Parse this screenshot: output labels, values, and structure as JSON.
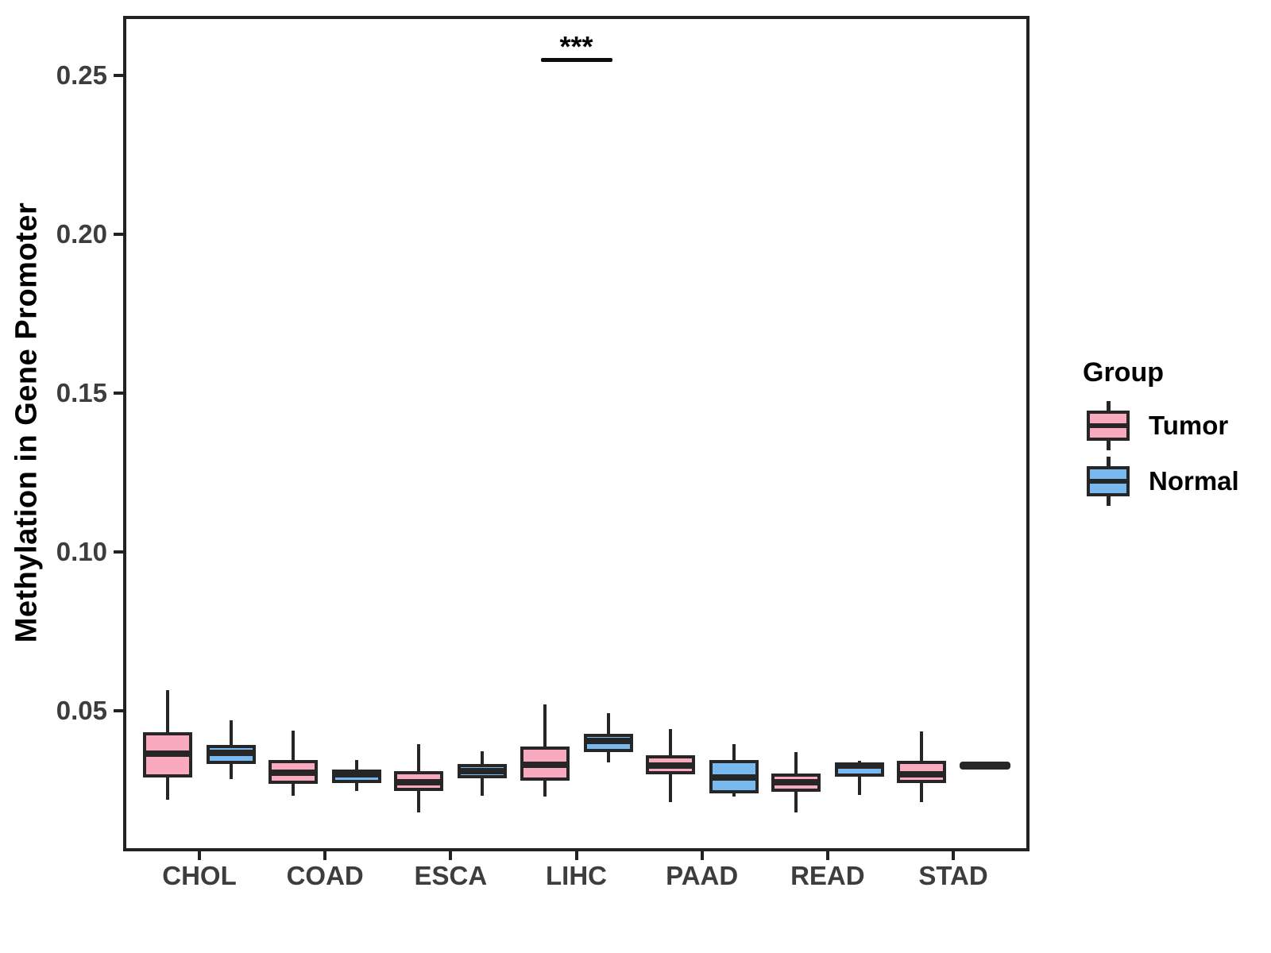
{
  "style": {
    "background": "#ffffff",
    "box_stroke": "#262626",
    "axis_color": "#222222",
    "tick_label_color": "#3d3d3d",
    "title_color": "#000000",
    "tumor_fill": "#FAAABE",
    "normal_fill": "#78BAF0"
  },
  "chart_data": {
    "type": "boxplot",
    "title": "",
    "xlabel": "",
    "ylabel": "Methylation in Gene Promoter",
    "grid": false,
    "legend_position": "right",
    "legend": {
      "title": "Group"
    },
    "categories": [
      "CHOL",
      "COAD",
      "ESCA",
      "LIHC",
      "PAAD",
      "READ",
      "STAD"
    ],
    "y_ticks": [
      0.05,
      0.1,
      0.15,
      0.2,
      0.25
    ],
    "ylim": [
      0.006,
      0.268
    ],
    "groups": [
      {
        "name": "Tumor",
        "fill": "#FAAABE"
      },
      {
        "name": "Normal",
        "fill": "#78BAF0"
      }
    ],
    "significance": {
      "category": "LIHC",
      "label": "***",
      "y": 0.255
    },
    "series": [
      {
        "category": "CHOL",
        "group": "Tumor",
        "min": 0.022,
        "q1": 0.029,
        "median": 0.0365,
        "q3": 0.0433,
        "max": 0.0565
      },
      {
        "category": "CHOL",
        "group": "Normal",
        "min": 0.0285,
        "q1": 0.0333,
        "median": 0.0368,
        "q3": 0.0393,
        "max": 0.047
      },
      {
        "category": "COAD",
        "group": "Tumor",
        "min": 0.0233,
        "q1": 0.027,
        "median": 0.0305,
        "q3": 0.0345,
        "max": 0.0438
      },
      {
        "category": "COAD",
        "group": "Normal",
        "min": 0.0248,
        "q1": 0.0272,
        "median": 0.03,
        "q3": 0.0315,
        "max": 0.0345
      },
      {
        "category": "ESCA",
        "group": "Tumor",
        "min": 0.018,
        "q1": 0.0248,
        "median": 0.0275,
        "q3": 0.031,
        "max": 0.0395
      },
      {
        "category": "ESCA",
        "group": "Normal",
        "min": 0.0233,
        "q1": 0.0288,
        "median": 0.031,
        "q3": 0.0333,
        "max": 0.0373
      },
      {
        "category": "LIHC",
        "group": "Tumor",
        "min": 0.023,
        "q1": 0.028,
        "median": 0.033,
        "q3": 0.0388,
        "max": 0.052
      },
      {
        "category": "LIHC",
        "group": "Normal",
        "min": 0.0338,
        "q1": 0.037,
        "median": 0.0405,
        "q3": 0.0428,
        "max": 0.0493
      },
      {
        "category": "PAAD",
        "group": "Tumor",
        "min": 0.0213,
        "q1": 0.03,
        "median": 0.0328,
        "q3": 0.036,
        "max": 0.0443
      },
      {
        "category": "PAAD",
        "group": "Normal",
        "min": 0.023,
        "q1": 0.024,
        "median": 0.029,
        "q3": 0.0345,
        "max": 0.0395
      },
      {
        "category": "READ",
        "group": "Tumor",
        "min": 0.018,
        "q1": 0.0245,
        "median": 0.0275,
        "q3": 0.0303,
        "max": 0.037
      },
      {
        "category": "READ",
        "group": "Normal",
        "min": 0.0235,
        "q1": 0.0293,
        "median": 0.0328,
        "q3": 0.0335,
        "max": 0.0343
      },
      {
        "category": "STAD",
        "group": "Tumor",
        "min": 0.0213,
        "q1": 0.0273,
        "median": 0.03,
        "q3": 0.0343,
        "max": 0.0435
      },
      {
        "category": "STAD",
        "group": "Normal",
        "min": 0.0328,
        "q1": 0.0328,
        "median": 0.0328,
        "q3": 0.0328,
        "max": 0.0328
      }
    ]
  }
}
